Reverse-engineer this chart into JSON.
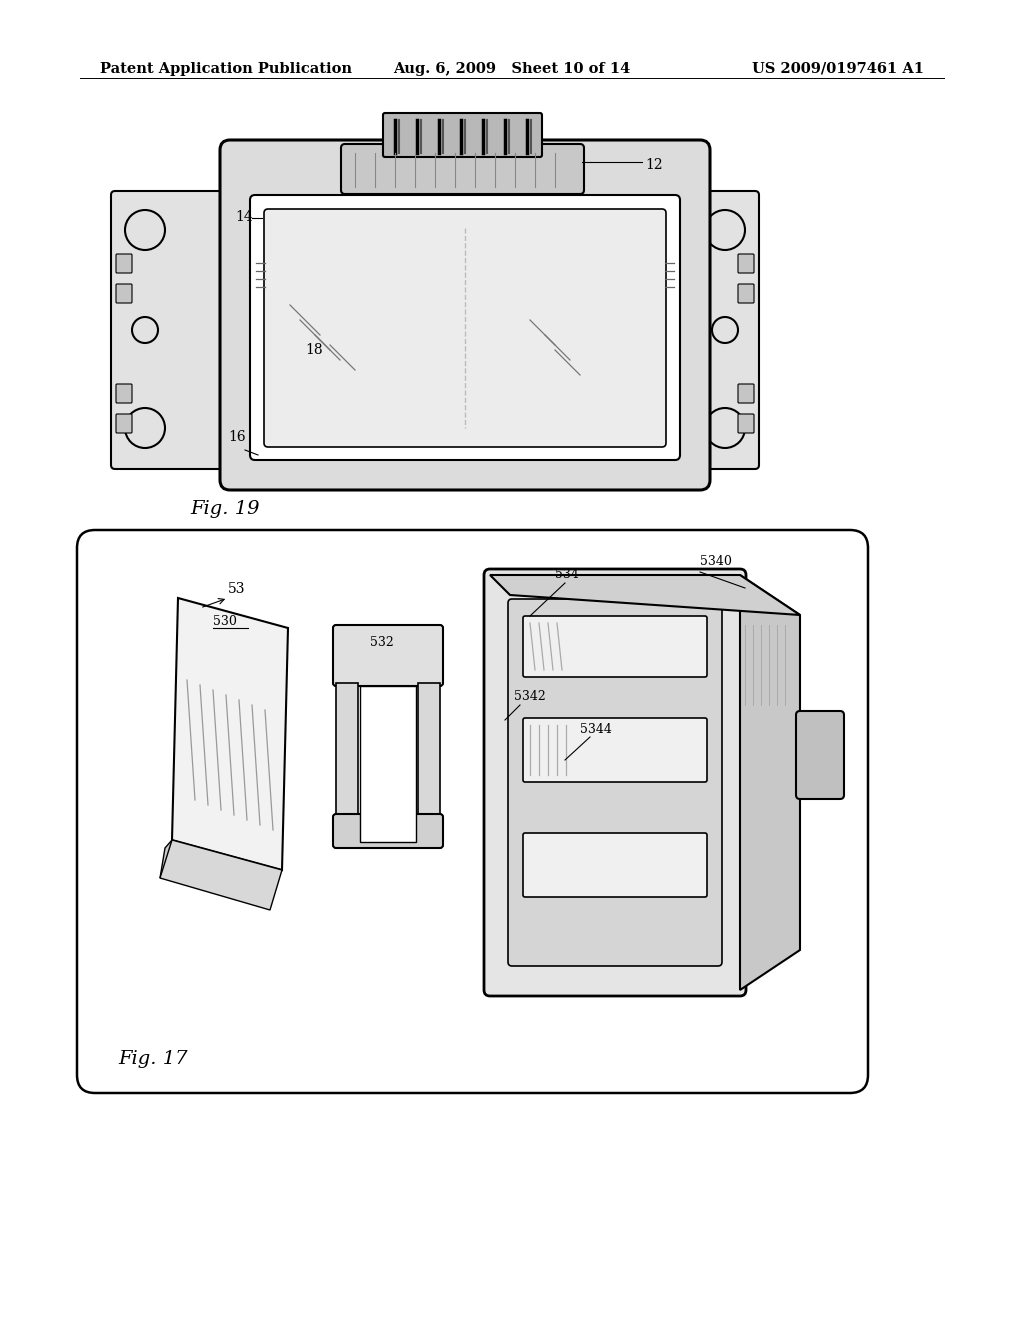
{
  "bg_color": "#ffffff",
  "header_left": "Patent Application Publication",
  "header_mid": "Aug. 6, 2009   Sheet 10 of 14",
  "header_right": "US 2009/0197461 A1",
  "fig19_label": "Fig. 19",
  "fig17_label": "Fig. 17"
}
